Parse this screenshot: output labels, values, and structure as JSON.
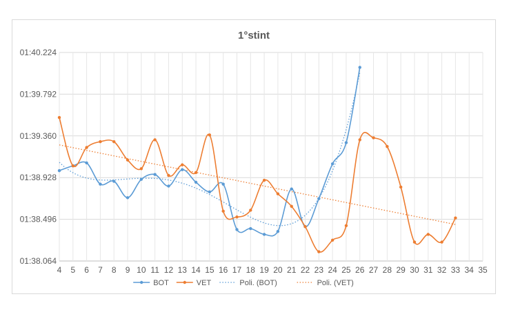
{
  "chart_data": {
    "type": "line",
    "title": "1°stint",
    "xlabel": "",
    "ylabel": "",
    "x_ticks": [
      "4",
      "5",
      "6",
      "7",
      "8",
      "9",
      "10",
      "11",
      "12",
      "13",
      "14",
      "15",
      "16",
      "17",
      "18",
      "19",
      "20",
      "21",
      "22",
      "23",
      "24",
      "25",
      "26",
      "27",
      "28",
      "29",
      "30",
      "31",
      "32",
      "33",
      "34",
      "35"
    ],
    "y_ticks": [
      "01:38.064",
      "01:38.496",
      "01:38.928",
      "01:39.360",
      "01:39.792",
      "01:40.224"
    ],
    "xlim": [
      4,
      35
    ],
    "ylim": [
      98.064,
      100.224
    ],
    "grid": true,
    "legend_position": "bottom",
    "series": [
      {
        "name": "BOT",
        "color": "#5b9bd5",
        "x": [
          4,
          5,
          6,
          7,
          8,
          9,
          10,
          11,
          12,
          13,
          14,
          15,
          16,
          17,
          18,
          19,
          20,
          21,
          22,
          23,
          24,
          25,
          26
        ],
        "values": [
          99.0,
          99.05,
          99.08,
          98.86,
          98.89,
          98.72,
          98.91,
          98.96,
          98.84,
          99.01,
          98.88,
          98.78,
          98.86,
          98.39,
          98.4,
          98.34,
          98.37,
          98.81,
          98.42,
          98.71,
          99.07,
          99.29,
          100.07
        ]
      },
      {
        "name": "VET",
        "color": "#ed7d31",
        "x": [
          4,
          5,
          6,
          7,
          8,
          9,
          10,
          11,
          12,
          13,
          14,
          15,
          16,
          17,
          18,
          19,
          20,
          21,
          22,
          23,
          24,
          25,
          26,
          27,
          28,
          29,
          30,
          31,
          32,
          33
        ],
        "values": [
          99.55,
          99.05,
          99.24,
          99.3,
          99.3,
          99.11,
          99.02,
          99.32,
          98.95,
          99.06,
          98.98,
          99.37,
          98.58,
          98.52,
          98.59,
          98.9,
          98.76,
          98.63,
          98.42,
          98.16,
          98.28,
          98.43,
          99.32,
          99.34,
          99.25,
          98.83,
          98.26,
          98.34,
          98.26,
          98.51
        ]
      }
    ],
    "trendlines": [
      {
        "name": "Poli. (BOT)",
        "color": "#5b9bd5",
        "of": "BOT",
        "order": 4
      },
      {
        "name": "Poli. (VET)",
        "color": "#ed7d31",
        "of": "VET",
        "order": 1
      }
    ]
  }
}
